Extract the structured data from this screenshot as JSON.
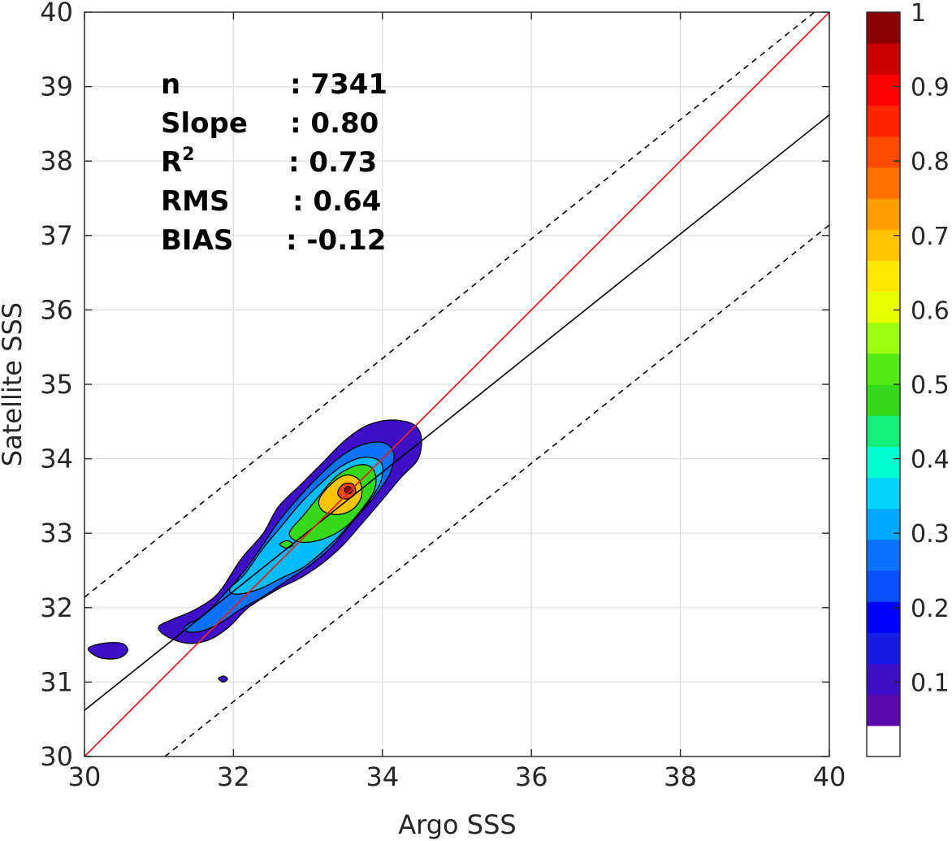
{
  "chart_data": {
    "type": "heatmap",
    "subtype": "density-contour",
    "title": "",
    "xlabel": "Argo SSS",
    "ylabel": "Satellite SSS",
    "xlim": [
      30,
      40
    ],
    "ylim": [
      30,
      40
    ],
    "xticks": [
      "30",
      "32",
      "34",
      "36",
      "38",
      "40"
    ],
    "yticks": [
      "30",
      "31",
      "32",
      "33",
      "34",
      "35",
      "36",
      "37",
      "38",
      "39",
      "40"
    ],
    "grid": true,
    "stats": [
      {
        "label": "n",
        "value": ": 7341"
      },
      {
        "label": "Slope",
        "value": ": 0.80"
      },
      {
        "label": "R",
        "sup": "2",
        "value": ": 0.73"
      },
      {
        "label": "RMS",
        "value": ": 0.64"
      },
      {
        "label": "BIAS",
        "value": ": -0.12"
      }
    ],
    "lines": {
      "identity": {
        "slope": 1,
        "intercept": 0,
        "color": "#d62728",
        "style": "solid"
      },
      "fit": {
        "x": [
          30,
          40
        ],
        "y": [
          30.62,
          38.62
        ],
        "color": "#000000",
        "style": "solid"
      },
      "upper_bound": {
        "x": [
          30,
          39.8
        ],
        "y": [
          32.14,
          40.0
        ],
        "color": "#000000",
        "style": "dashed"
      },
      "lower_bound": {
        "x": [
          31.08,
          40
        ],
        "y": [
          30.0,
          37.14
        ],
        "color": "#000000",
        "style": "dashed"
      }
    },
    "density_peak": {
      "x": 33.55,
      "y": 33.58
    },
    "contour_levels": [
      {
        "level": 0.05,
        "color": "#3d10c8",
        "outline": [
          [
            31.0,
            31.75
          ],
          [
            31.2,
            31.85
          ],
          [
            31.5,
            31.98
          ],
          [
            31.8,
            32.2
          ],
          [
            32.1,
            32.65
          ],
          [
            32.4,
            33.0
          ],
          [
            32.6,
            33.35
          ],
          [
            32.9,
            33.65
          ],
          [
            33.2,
            33.95
          ],
          [
            33.5,
            34.25
          ],
          [
            33.8,
            34.45
          ],
          [
            34.1,
            34.52
          ],
          [
            34.4,
            34.47
          ],
          [
            34.52,
            34.3
          ],
          [
            34.48,
            34.0
          ],
          [
            34.25,
            33.75
          ],
          [
            34.0,
            33.45
          ],
          [
            33.7,
            33.1
          ],
          [
            33.45,
            32.82
          ],
          [
            33.2,
            32.6
          ],
          [
            32.9,
            32.4
          ],
          [
            32.6,
            32.25
          ],
          [
            32.2,
            32.0
          ],
          [
            31.95,
            31.75
          ],
          [
            31.7,
            31.58
          ],
          [
            31.45,
            31.52
          ],
          [
            31.25,
            31.55
          ],
          [
            31.05,
            31.65
          ]
        ]
      },
      {
        "level": 0.15,
        "color": "#0b72ff",
        "outline": [
          [
            31.35,
            31.75
          ],
          [
            31.6,
            31.9
          ],
          [
            31.85,
            32.15
          ],
          [
            32.15,
            32.5
          ],
          [
            32.4,
            32.85
          ],
          [
            32.6,
            33.15
          ],
          [
            32.85,
            33.45
          ],
          [
            33.1,
            33.72
          ],
          [
            33.4,
            34.0
          ],
          [
            33.7,
            34.18
          ],
          [
            34.0,
            34.22
          ],
          [
            34.15,
            34.08
          ],
          [
            34.1,
            33.8
          ],
          [
            33.9,
            33.5
          ],
          [
            33.6,
            33.15
          ],
          [
            33.3,
            32.8
          ],
          [
            33.0,
            32.55
          ],
          [
            32.7,
            32.35
          ],
          [
            32.4,
            32.15
          ],
          [
            32.1,
            31.98
          ],
          [
            31.8,
            31.78
          ],
          [
            31.55,
            31.68
          ],
          [
            31.38,
            31.68
          ]
        ]
      },
      {
        "level": 0.3,
        "color": "#00bcff",
        "outline": [
          [
            31.95,
            32.25
          ],
          [
            32.15,
            32.45
          ],
          [
            32.4,
            32.8
          ],
          [
            32.65,
            33.1
          ],
          [
            32.9,
            33.4
          ],
          [
            33.15,
            33.65
          ],
          [
            33.45,
            33.9
          ],
          [
            33.75,
            34.02
          ],
          [
            33.98,
            33.95
          ],
          [
            33.98,
            33.7
          ],
          [
            33.8,
            33.4
          ],
          [
            33.55,
            33.1
          ],
          [
            33.25,
            32.8
          ],
          [
            32.95,
            32.55
          ],
          [
            32.65,
            32.4
          ],
          [
            32.35,
            32.25
          ],
          [
            32.05,
            32.18
          ]
        ]
      },
      {
        "level": 0.5,
        "color": "#36d91a",
        "outline": [
          [
            32.75,
            33.0
          ],
          [
            32.95,
            33.25
          ],
          [
            33.15,
            33.5
          ],
          [
            33.4,
            33.78
          ],
          [
            33.7,
            33.92
          ],
          [
            33.88,
            33.85
          ],
          [
            33.9,
            33.6
          ],
          [
            33.72,
            33.32
          ],
          [
            33.5,
            33.08
          ],
          [
            33.2,
            32.92
          ],
          [
            32.9,
            32.88
          ]
        ]
      },
      {
        "level": 0.7,
        "color": "#ffc300",
        "outline": [
          [
            33.15,
            33.45
          ],
          [
            33.3,
            33.65
          ],
          [
            33.5,
            33.78
          ],
          [
            33.68,
            33.72
          ],
          [
            33.72,
            33.5
          ],
          [
            33.6,
            33.32
          ],
          [
            33.4,
            33.25
          ],
          [
            33.2,
            33.3
          ]
        ]
      },
      {
        "level": 0.85,
        "color": "#ff4b00",
        "outline": [
          [
            33.4,
            33.55
          ],
          [
            33.48,
            33.66
          ],
          [
            33.6,
            33.66
          ],
          [
            33.64,
            33.55
          ],
          [
            33.56,
            33.47
          ],
          [
            33.45,
            33.47
          ]
        ]
      },
      {
        "level": 0.95,
        "color": "#cc0000",
        "outline": [
          [
            33.49,
            33.58
          ],
          [
            33.54,
            33.63
          ],
          [
            33.6,
            33.58
          ],
          [
            33.55,
            33.53
          ]
        ]
      }
    ],
    "islands": [
      {
        "level": 0.05,
        "color": "#3d10c8",
        "outline": [
          [
            30.05,
            31.45
          ],
          [
            30.25,
            31.52
          ],
          [
            30.5,
            31.52
          ],
          [
            30.58,
            31.42
          ],
          [
            30.45,
            31.32
          ],
          [
            30.2,
            31.33
          ]
        ]
      },
      {
        "level": 0.05,
        "color": "#3d10c8",
        "outline": [
          [
            31.8,
            31.05
          ],
          [
            31.87,
            31.08
          ],
          [
            31.92,
            31.04
          ],
          [
            31.86,
            31.0
          ]
        ]
      },
      {
        "level": 0.5,
        "color": "#36d91a",
        "outline": [
          [
            32.62,
            32.85
          ],
          [
            32.72,
            32.9
          ],
          [
            32.8,
            32.85
          ],
          [
            32.72,
            32.8
          ]
        ]
      }
    ],
    "colorbar": {
      "ticks": [
        "0.1",
        "0.2",
        "0.3",
        "0.4",
        "0.5",
        "0.6",
        "0.7",
        "0.8",
        "0.9",
        "1"
      ],
      "range": [
        0,
        1
      ],
      "colors": [
        "#ffffff",
        "#5a0aa8",
        "#3d10c8",
        "#1a1ae6",
        "#0000ff",
        "#0a50ff",
        "#0b72ff",
        "#00a8ff",
        "#00d4ff",
        "#00ffd0",
        "#12f07a",
        "#36d91a",
        "#55ea18",
        "#9cff10",
        "#e8ff00",
        "#ffe800",
        "#ffc300",
        "#ff9e00",
        "#ff7000",
        "#ff4b00",
        "#ff2400",
        "#ff0000",
        "#cc0000",
        "#8b0000"
      ]
    }
  }
}
